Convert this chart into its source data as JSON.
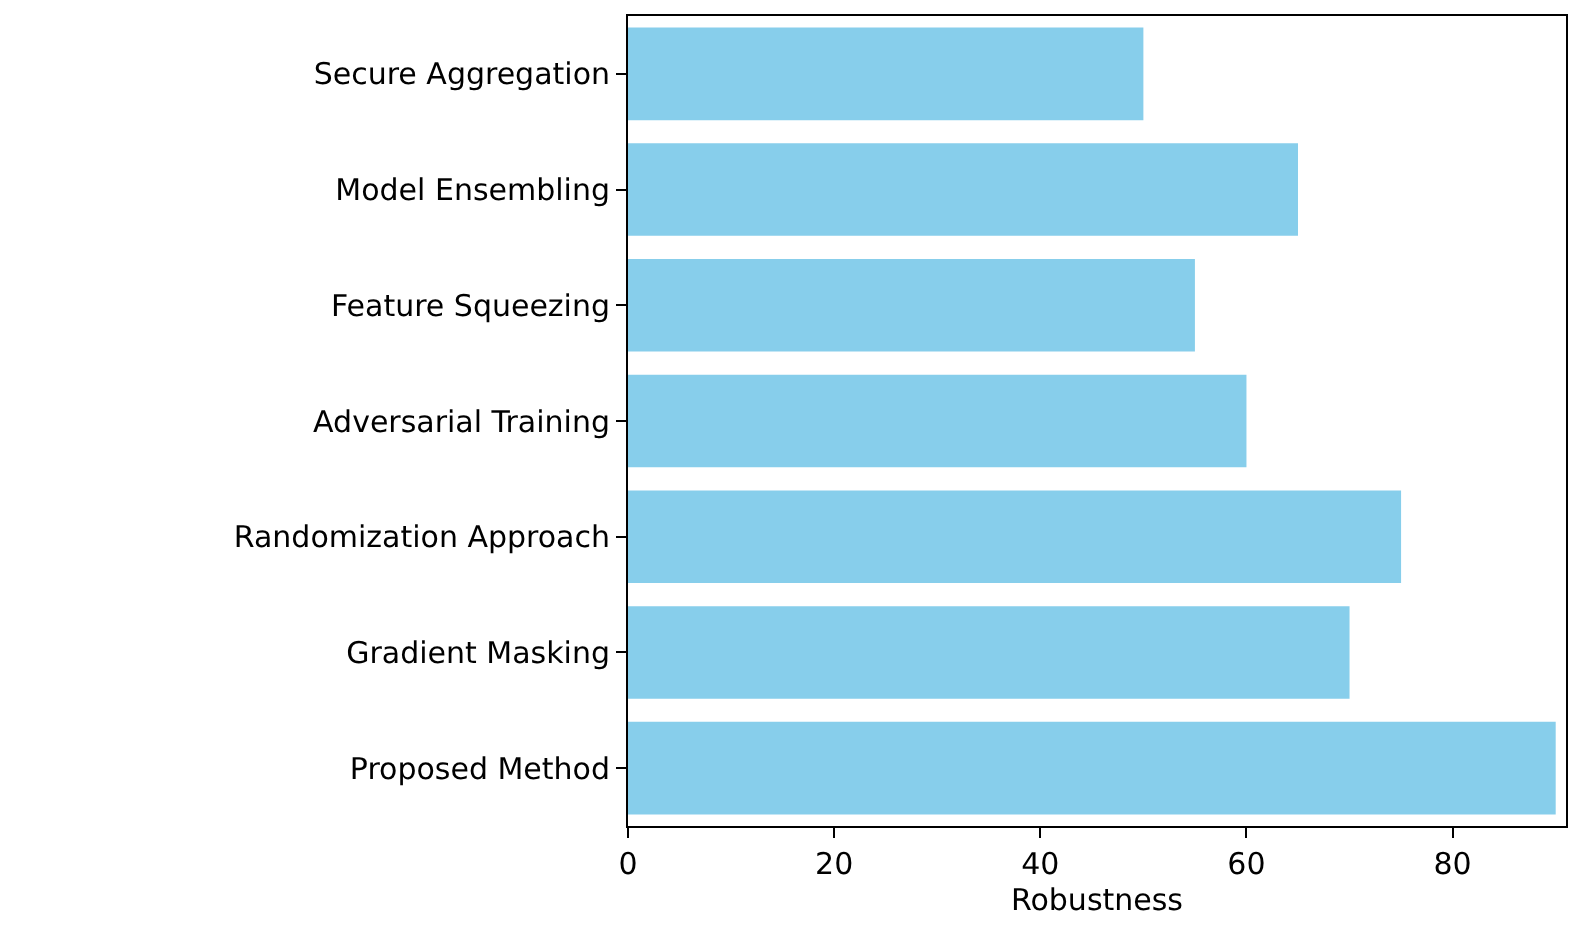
{
  "chart_data": {
    "type": "bar",
    "orientation": "horizontal",
    "xlabel": "Robustness",
    "categories": [
      "Secure Aggregation",
      "Model Ensembling",
      "Feature Squeezing",
      "Adversarial Training",
      "Randomization Approach",
      "Gradient Masking",
      "Proposed Method"
    ],
    "values": [
      50,
      65,
      55,
      60,
      75,
      70,
      90
    ],
    "color": "#87ceeb",
    "xlim": [
      0,
      91
    ],
    "xticks": [
      0,
      20,
      40,
      60,
      80
    ]
  }
}
